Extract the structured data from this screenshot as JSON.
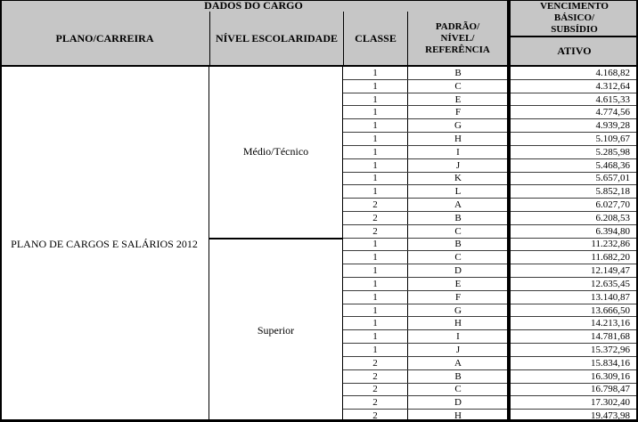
{
  "table": {
    "group_header": "DADOS DO CARGO",
    "columns": {
      "plano": "PLANO/CARREIRA",
      "nivel": "NÍVEL ESCOLARIDADE",
      "classe": "CLASSE",
      "padrao_lines": [
        "PADRÃO/",
        "NÍVEL/",
        "REFERÊNCIA"
      ],
      "vencimento_lines": [
        "VENCIMENTO",
        "BÁSICO/",
        "SUBSÍDIO"
      ],
      "ativo": "ATIVO"
    },
    "plano_carreira": "PLANO DE CARGOS E SALÁRIOS 2012",
    "sections": [
      {
        "nivel": "Médio/Técnico",
        "rows": [
          {
            "classe": "1",
            "referencia": "B",
            "ativo": "4.168,82"
          },
          {
            "classe": "1",
            "referencia": "C",
            "ativo": "4.312,64"
          },
          {
            "classe": "1",
            "referencia": "E",
            "ativo": "4.615,33"
          },
          {
            "classe": "1",
            "referencia": "F",
            "ativo": "4.774,56"
          },
          {
            "classe": "1",
            "referencia": "G",
            "ativo": "4.939,28"
          },
          {
            "classe": "1",
            "referencia": "H",
            "ativo": "5.109,67"
          },
          {
            "classe": "1",
            "referencia": "I",
            "ativo": "5.285,98"
          },
          {
            "classe": "1",
            "referencia": "J",
            "ativo": "5.468,36"
          },
          {
            "classe": "1",
            "referencia": "K",
            "ativo": "5.657,01"
          },
          {
            "classe": "1",
            "referencia": "L",
            "ativo": "5.852,18"
          },
          {
            "classe": "2",
            "referencia": "A",
            "ativo": "6.027,70"
          },
          {
            "classe": "2",
            "referencia": "B",
            "ativo": "6.208,53"
          },
          {
            "classe": "2",
            "referencia": "C",
            "ativo": "6.394,80"
          }
        ]
      },
      {
        "nivel": "Superior",
        "rows": [
          {
            "classe": "1",
            "referencia": "B",
            "ativo": "11.232,86"
          },
          {
            "classe": "1",
            "referencia": "C",
            "ativo": "11.682,20"
          },
          {
            "classe": "1",
            "referencia": "D",
            "ativo": "12.149,47"
          },
          {
            "classe": "1",
            "referencia": "E",
            "ativo": "12.635,45"
          },
          {
            "classe": "1",
            "referencia": "F",
            "ativo": "13.140,87"
          },
          {
            "classe": "1",
            "referencia": "G",
            "ativo": "13.666,50"
          },
          {
            "classe": "1",
            "referencia": "H",
            "ativo": "14.213,16"
          },
          {
            "classe": "1",
            "referencia": "I",
            "ativo": "14.781,68"
          },
          {
            "classe": "1",
            "referencia": "J",
            "ativo": "15.372,96"
          },
          {
            "classe": "2",
            "referencia": "A",
            "ativo": "15.834,16"
          },
          {
            "classe": "2",
            "referencia": "B",
            "ativo": "16.309,16"
          },
          {
            "classe": "2",
            "referencia": "C",
            "ativo": "16.798,47"
          },
          {
            "classe": "2",
            "referencia": "D",
            "ativo": "17.302,40"
          },
          {
            "classe": "2",
            "referencia": "H",
            "ativo": "19.473,98"
          }
        ]
      }
    ],
    "colors": {
      "header_bg": "#c6c6c6",
      "border": "#000000",
      "grid_line": "#3d3d3d",
      "text": "#000000"
    }
  }
}
